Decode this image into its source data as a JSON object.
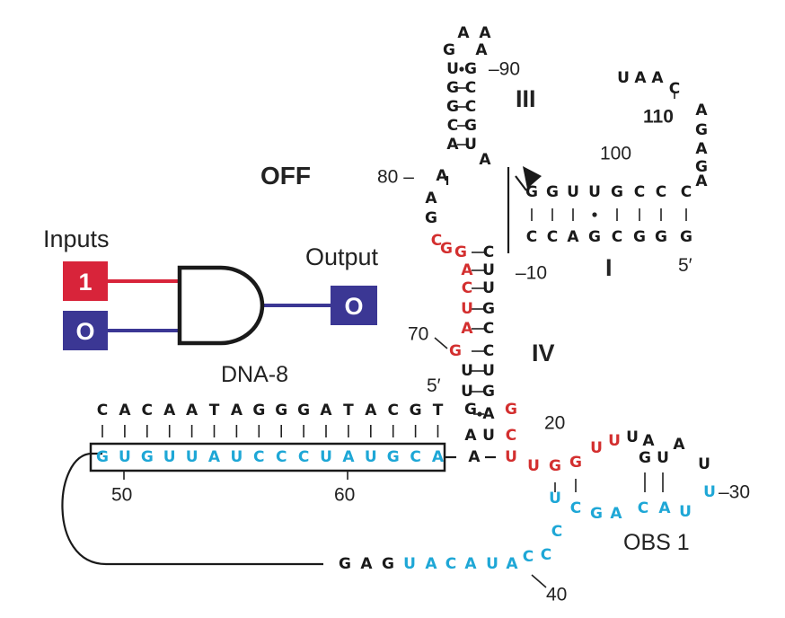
{
  "colors": {
    "black": "#1a1a1a",
    "red": "#d32f2f",
    "cyan": "#1ea7d6",
    "purple": "#3b3794",
    "input_red": "#d8243a"
  },
  "labels": {
    "off": "OFF",
    "inputs": "Inputs",
    "output": "Output",
    "input_1": "1",
    "input_2": "O",
    "output_value": "O",
    "dna": "DNA-8",
    "obs": "OBS 1",
    "stem_I": "I",
    "stem_III": "III",
    "stem_IV": "IV",
    "five_prime_right": "5′",
    "five_prime_left": "5′"
  },
  "numbers": {
    "n10": "–10",
    "n20": "20",
    "n30": "–30",
    "n40": "40",
    "n50": "50",
    "n60": "60",
    "n70": "70",
    "n80": "80 –",
    "n90": "–90",
    "n100": "100",
    "n110": "110"
  },
  "dna8_strand": [
    "C",
    "A",
    "C",
    "A",
    "A",
    "T",
    "A",
    "G",
    "G",
    "G",
    "A",
    "T",
    "A",
    "C",
    "G",
    "T"
  ],
  "bound_strand": [
    "G",
    "U",
    "G",
    "U",
    "U",
    "A",
    "U",
    "C",
    "C",
    "C",
    "U",
    "A",
    "U",
    "G",
    "C",
    "A"
  ],
  "nucleotides": [
    {
      "l": "A",
      "c": "k"
    },
    {
      "l": "A",
      "c": "k"
    },
    {
      "l": "G",
      "c": "k"
    },
    {
      "l": "A",
      "c": "k"
    },
    {
      "l": "U",
      "c": "k"
    },
    {
      "l": "G",
      "c": "k"
    },
    {
      "l": "G",
      "c": "k"
    },
    {
      "l": "C",
      "c": "k"
    },
    {
      "l": "G",
      "c": "k"
    },
    {
      "l": "C",
      "c": "k"
    },
    {
      "l": "C",
      "c": "k"
    },
    {
      "l": "G",
      "c": "k"
    },
    {
      "l": "A",
      "c": "k"
    },
    {
      "l": "U",
      "c": "k"
    },
    {
      "l": "A",
      "c": "k"
    },
    {
      "l": "A",
      "c": "k"
    },
    {
      "l": "A",
      "c": "k"
    },
    {
      "l": "G",
      "c": "k"
    },
    {
      "l": "U",
      "c": "k"
    },
    {
      "l": "A",
      "c": "k"
    },
    {
      "l": "A",
      "c": "k"
    },
    {
      "l": "C",
      "c": "k"
    },
    {
      "l": "A",
      "c": "k"
    },
    {
      "l": "G",
      "c": "k"
    },
    {
      "l": "A",
      "c": "k"
    },
    {
      "l": "G",
      "c": "k"
    },
    {
      "l": "A",
      "c": "k"
    },
    {
      "l": "G",
      "c": "k"
    },
    {
      "l": "G",
      "c": "k"
    },
    {
      "l": "U",
      "c": "k"
    },
    {
      "l": "U",
      "c": "k"
    },
    {
      "l": "G",
      "c": "k"
    },
    {
      "l": "C",
      "c": "k"
    },
    {
      "l": "C",
      "c": "k"
    },
    {
      "l": "C",
      "c": "k"
    },
    {
      "l": "C",
      "c": "k"
    },
    {
      "l": "C",
      "c": "k"
    },
    {
      "l": "A",
      "c": "k"
    },
    {
      "l": "G",
      "c": "k"
    },
    {
      "l": "C",
      "c": "k"
    },
    {
      "l": "G",
      "c": "k"
    },
    {
      "l": "G",
      "c": "k"
    },
    {
      "l": "G",
      "c": "k"
    },
    {
      "l": "C",
      "c": "r"
    },
    {
      "l": "G",
      "c": "r"
    },
    {
      "l": "G",
      "c": "r"
    },
    {
      "l": "A",
      "c": "r"
    },
    {
      "l": "C",
      "c": "r"
    },
    {
      "l": "U",
      "c": "r"
    },
    {
      "l": "A",
      "c": "r"
    },
    {
      "l": "G",
      "c": "r"
    },
    {
      "l": "C",
      "c": "k"
    },
    {
      "l": "U",
      "c": "k"
    },
    {
      "l": "U",
      "c": "k"
    },
    {
      "l": "G",
      "c": "k"
    },
    {
      "l": "C",
      "c": "k"
    },
    {
      "l": "U",
      "c": "k"
    },
    {
      "l": "U",
      "c": "k"
    },
    {
      "l": "C",
      "c": "k"
    },
    {
      "l": "U",
      "c": "k"
    },
    {
      "l": "G",
      "c": "k"
    },
    {
      "l": "A",
      "c": "k"
    },
    {
      "l": "U",
      "c": "k"
    },
    {
      "l": "G",
      "c": "k"
    },
    {
      "l": "A",
      "c": "k"
    },
    {
      "l": "A",
      "c": "k"
    },
    {
      "l": "G",
      "c": "r"
    },
    {
      "l": "C",
      "c": "r"
    },
    {
      "l": "U",
      "c": "r"
    },
    {
      "l": "U",
      "c": "r"
    },
    {
      "l": "G",
      "c": "r"
    },
    {
      "l": "G",
      "c": "r"
    },
    {
      "l": "U",
      "c": "r"
    },
    {
      "l": "U",
      "c": "r"
    },
    {
      "l": "U",
      "c": "k"
    },
    {
      "l": "A",
      "c": "k"
    },
    {
      "l": "G",
      "c": "k"
    },
    {
      "l": "U",
      "c": "k"
    },
    {
      "l": "A",
      "c": "k"
    },
    {
      "l": "U",
      "c": "k"
    },
    {
      "l": "U",
      "c": "b"
    },
    {
      "l": "C",
      "c": "b"
    },
    {
      "l": "G",
      "c": "b"
    },
    {
      "l": "A",
      "c": "b"
    },
    {
      "l": "C",
      "c": "b"
    },
    {
      "l": "A",
      "c": "b"
    },
    {
      "l": "U",
      "c": "b"
    },
    {
      "l": "U",
      "c": "b"
    },
    {
      "l": "C",
      "c": "b"
    },
    {
      "l": "C",
      "c": "b"
    },
    {
      "l": "G",
      "c": "k"
    },
    {
      "l": "A",
      "c": "k"
    },
    {
      "l": "G",
      "c": "k"
    },
    {
      "l": "U",
      "c": "b"
    },
    {
      "l": "A",
      "c": "b"
    },
    {
      "l": "C",
      "c": "b"
    },
    {
      "l": "A",
      "c": "b"
    },
    {
      "l": "U",
      "c": "b"
    },
    {
      "l": "A",
      "c": "b"
    },
    {
      "l": "C",
      "c": "b"
    }
  ]
}
